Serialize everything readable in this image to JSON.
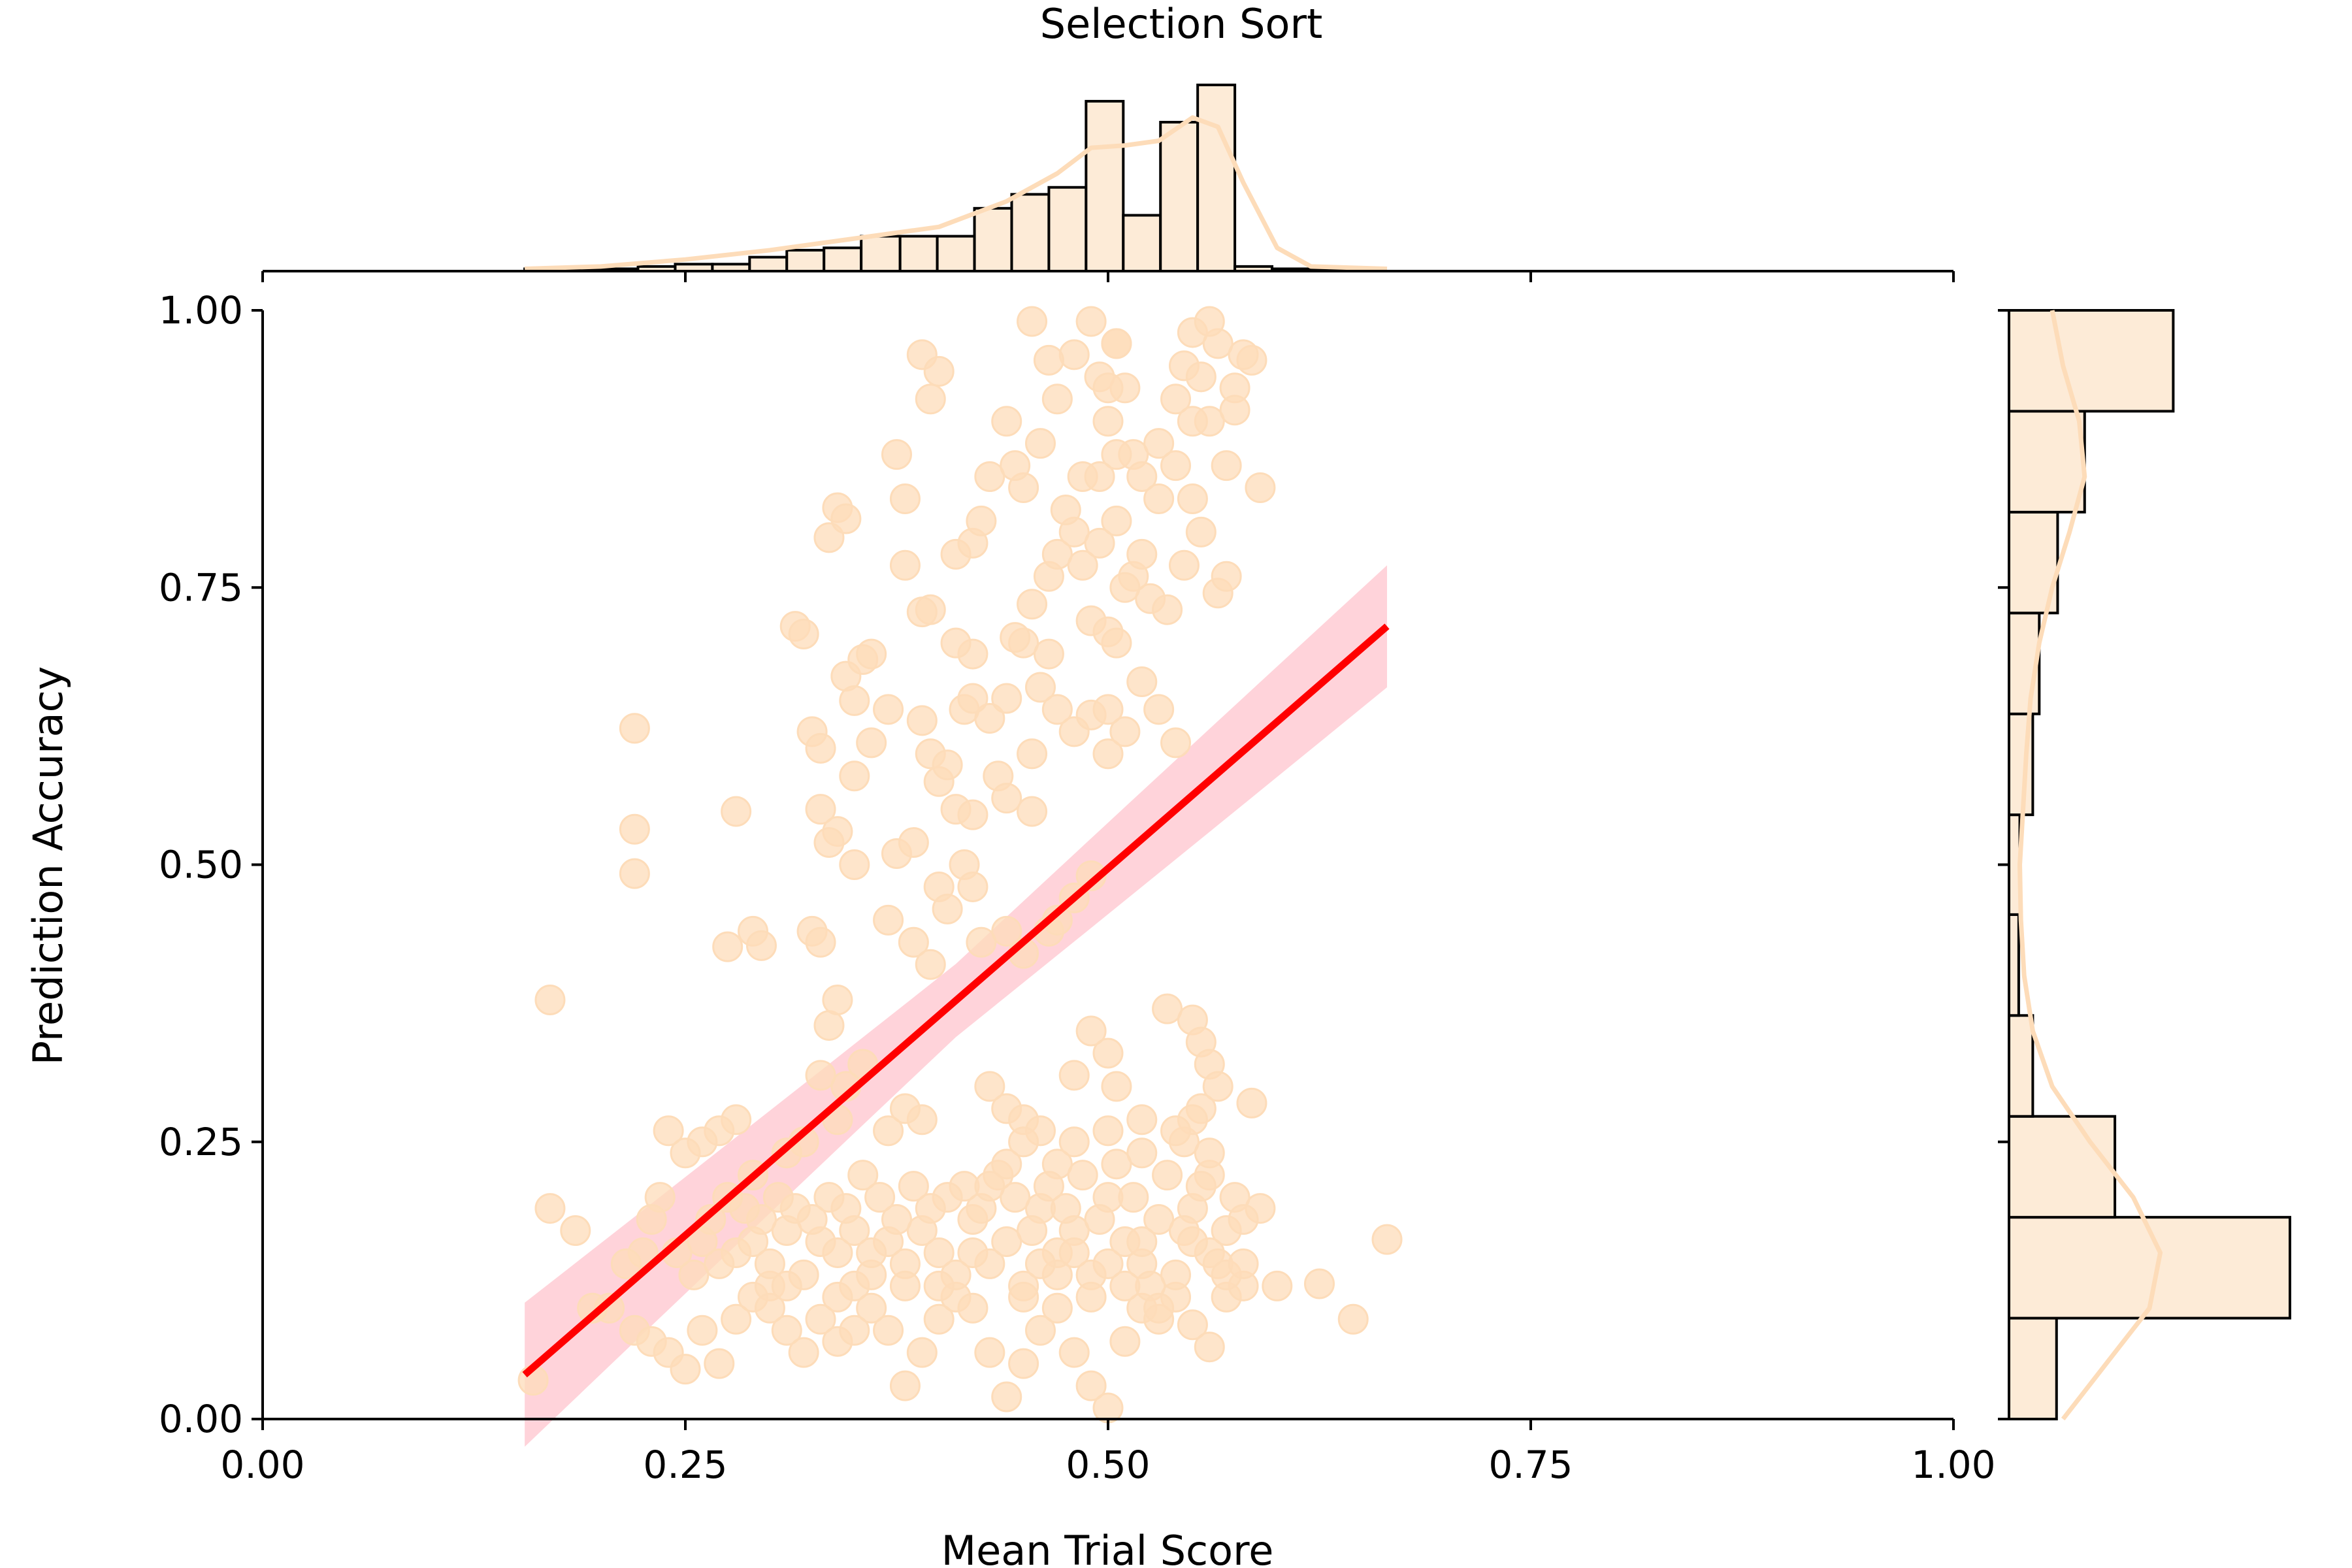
{
  "chart_data": {
    "type": "scatter",
    "title": "Selection Sort",
    "xlabel": "Mean Trial Score",
    "ylabel": "Prediction Accuracy",
    "xlim": [
      0,
      1
    ],
    "ylim": [
      0,
      1
    ],
    "xticks": [
      "0.00",
      "0.25",
      "0.50",
      "0.75",
      "1.00"
    ],
    "yticks": [
      "0.00",
      "0.25",
      "0.50",
      "0.75",
      "1.00"
    ],
    "colors": {
      "points": "#fddcb9",
      "regression_line": "#ff0000",
      "confidence_band": "#ffb6c1",
      "hist_fill": "#fdebd7",
      "kde": "#fddcb9"
    },
    "regression": {
      "x_range": [
        0.155,
        0.665
      ],
      "y_at_start": 0.04,
      "y_at_end": 0.715,
      "ci_half_width_start": 0.065,
      "ci_half_width_end": 0.055
    },
    "marginal_x": {
      "bin_edges": [
        0.155,
        0.177,
        0.199,
        0.222,
        0.244,
        0.266,
        0.288,
        0.31,
        0.332,
        0.354,
        0.377,
        0.399,
        0.421,
        0.443,
        0.465,
        0.487,
        0.509,
        0.531,
        0.553,
        0.575,
        0.597,
        0.62,
        0.642,
        0.664
      ],
      "counts": [
        1,
        1,
        1,
        2,
        3,
        3,
        6,
        9,
        10,
        15,
        15,
        15,
        27,
        33,
        36,
        73,
        24,
        64,
        80,
        2,
        1,
        0,
        0
      ],
      "kde_x": [
        0.155,
        0.2,
        0.25,
        0.3,
        0.35,
        0.4,
        0.44,
        0.47,
        0.49,
        0.51,
        0.53,
        0.55,
        0.565,
        0.58,
        0.6,
        0.62,
        0.665
      ],
      "kde_y": [
        1,
        2,
        5,
        9,
        14,
        19,
        30,
        42,
        53,
        54,
        56,
        66,
        62,
        38,
        10,
        2,
        1
      ]
    },
    "marginal_y": {
      "bin_edges": [
        0.0,
        0.091,
        0.182,
        0.273,
        0.364,
        0.455,
        0.545,
        0.636,
        0.727,
        0.818,
        0.909,
        1.0
      ],
      "counts": [
        44,
        260,
        98,
        22,
        9,
        10,
        22,
        28,
        45,
        70,
        152
      ],
      "kde_y": [
        0.0,
        0.05,
        0.1,
        0.15,
        0.2,
        0.25,
        0.3,
        0.35,
        0.4,
        0.45,
        0.5,
        0.6,
        0.65,
        0.7,
        0.75,
        0.8,
        0.85,
        0.9,
        0.95,
        1.0
      ],
      "kde_x": [
        50,
        90,
        130,
        140,
        115,
        75,
        40,
        22,
        14,
        11,
        10,
        16,
        20,
        28,
        40,
        56,
        70,
        65,
        50,
        40
      ]
    },
    "points": [
      [
        0.17,
        0.378
      ],
      [
        0.22,
        0.623
      ],
      [
        0.22,
        0.532
      ],
      [
        0.22,
        0.492
      ],
      [
        0.275,
        0.426
      ],
      [
        0.28,
        0.548
      ],
      [
        0.29,
        0.44
      ],
      [
        0.295,
        0.427
      ],
      [
        0.315,
        0.715
      ],
      [
        0.32,
        0.708
      ],
      [
        0.325,
        0.62
      ],
      [
        0.33,
        0.605
      ],
      [
        0.325,
        0.44
      ],
      [
        0.33,
        0.43
      ],
      [
        0.33,
        0.55
      ],
      [
        0.335,
        0.355
      ],
      [
        0.34,
        0.378
      ],
      [
        0.345,
        0.67
      ],
      [
        0.35,
        0.648
      ],
      [
        0.355,
        0.685
      ],
      [
        0.36,
        0.69
      ],
      [
        0.335,
        0.795
      ],
      [
        0.34,
        0.822
      ],
      [
        0.345,
        0.812
      ],
      [
        0.375,
        0.87
      ],
      [
        0.38,
        0.83
      ],
      [
        0.39,
        0.96
      ],
      [
        0.395,
        0.92
      ],
      [
        0.4,
        0.945
      ],
      [
        0.38,
        0.77
      ],
      [
        0.395,
        0.73
      ],
      [
        0.39,
        0.728
      ],
      [
        0.41,
        0.78
      ],
      [
        0.42,
        0.79
      ],
      [
        0.43,
        0.85
      ],
      [
        0.425,
        0.81
      ],
      [
        0.415,
        0.64
      ],
      [
        0.43,
        0.632
      ],
      [
        0.44,
        0.65
      ],
      [
        0.45,
        0.7
      ],
      [
        0.395,
        0.6
      ],
      [
        0.4,
        0.575
      ],
      [
        0.405,
        0.59
      ],
      [
        0.41,
        0.55
      ],
      [
        0.42,
        0.545
      ],
      [
        0.435,
        0.58
      ],
      [
        0.44,
        0.56
      ],
      [
        0.455,
        0.548
      ],
      [
        0.375,
        0.51
      ],
      [
        0.385,
        0.52
      ],
      [
        0.4,
        0.48
      ],
      [
        0.415,
        0.5
      ],
      [
        0.425,
        0.43
      ],
      [
        0.455,
        0.6
      ],
      [
        0.46,
        0.66
      ],
      [
        0.47,
        0.64
      ],
      [
        0.48,
        0.62
      ],
      [
        0.49,
        0.635
      ],
      [
        0.5,
        0.6
      ],
      [
        0.51,
        0.62
      ],
      [
        0.52,
        0.665
      ],
      [
        0.53,
        0.64
      ],
      [
        0.54,
        0.61
      ],
      [
        0.445,
        0.705
      ],
      [
        0.455,
        0.735
      ],
      [
        0.465,
        0.76
      ],
      [
        0.47,
        0.78
      ],
      [
        0.48,
        0.8
      ],
      [
        0.485,
        0.77
      ],
      [
        0.495,
        0.79
      ],
      [
        0.505,
        0.81
      ],
      [
        0.515,
        0.76
      ],
      [
        0.525,
        0.74
      ],
      [
        0.535,
        0.73
      ],
      [
        0.545,
        0.77
      ],
      [
        0.555,
        0.8
      ],
      [
        0.565,
        0.745
      ],
      [
        0.57,
        0.76
      ],
      [
        0.45,
        0.84
      ],
      [
        0.46,
        0.88
      ],
      [
        0.47,
        0.92
      ],
      [
        0.48,
        0.96
      ],
      [
        0.49,
        0.99
      ],
      [
        0.495,
        0.94
      ],
      [
        0.5,
        0.9
      ],
      [
        0.505,
        0.97
      ],
      [
        0.51,
        0.93
      ],
      [
        0.515,
        0.87
      ],
      [
        0.52,
        0.85
      ],
      [
        0.53,
        0.88
      ],
      [
        0.54,
        0.92
      ],
      [
        0.545,
        0.95
      ],
      [
        0.55,
        0.98
      ],
      [
        0.555,
        0.94
      ],
      [
        0.56,
        0.9
      ],
      [
        0.565,
        0.97
      ],
      [
        0.57,
        0.86
      ],
      [
        0.575,
        0.93
      ],
      [
        0.585,
        0.955
      ],
      [
        0.59,
        0.84
      ],
      [
        0.455,
        0.99
      ],
      [
        0.465,
        0.955
      ],
      [
        0.44,
        0.9
      ],
      [
        0.445,
        0.86
      ],
      [
        0.475,
        0.82
      ],
      [
        0.485,
        0.85
      ],
      [
        0.49,
        0.72
      ],
      [
        0.5,
        0.71
      ],
      [
        0.505,
        0.7
      ],
      [
        0.465,
        0.69
      ],
      [
        0.48,
        0.47
      ],
      [
        0.49,
        0.49
      ],
      [
        0.465,
        0.44
      ],
      [
        0.47,
        0.45
      ],
      [
        0.535,
        0.37
      ],
      [
        0.55,
        0.36
      ],
      [
        0.555,
        0.34
      ],
      [
        0.56,
        0.32
      ],
      [
        0.565,
        0.3
      ],
      [
        0.555,
        0.28
      ],
      [
        0.545,
        0.25
      ],
      [
        0.55,
        0.27
      ],
      [
        0.56,
        0.22
      ],
      [
        0.52,
        0.24
      ],
      [
        0.52,
        0.27
      ],
      [
        0.5,
        0.33
      ],
      [
        0.49,
        0.35
      ],
      [
        0.48,
        0.31
      ],
      [
        0.505,
        0.3
      ],
      [
        0.43,
        0.3
      ],
      [
        0.44,
        0.28
      ],
      [
        0.45,
        0.27
      ],
      [
        0.46,
        0.26
      ],
      [
        0.47,
        0.23
      ],
      [
        0.48,
        0.25
      ],
      [
        0.39,
        0.27
      ],
      [
        0.38,
        0.28
      ],
      [
        0.37,
        0.26
      ],
      [
        0.355,
        0.32
      ],
      [
        0.345,
        0.3
      ],
      [
        0.33,
        0.31
      ],
      [
        0.34,
        0.27
      ],
      [
        0.32,
        0.25
      ],
      [
        0.31,
        0.24
      ],
      [
        0.29,
        0.22
      ],
      [
        0.28,
        0.27
      ],
      [
        0.27,
        0.26
      ],
      [
        0.26,
        0.25
      ],
      [
        0.25,
        0.24
      ],
      [
        0.24,
        0.26
      ],
      [
        0.235,
        0.2
      ],
      [
        0.23,
        0.18
      ],
      [
        0.225,
        0.15
      ],
      [
        0.215,
        0.14
      ],
      [
        0.205,
        0.1
      ],
      [
        0.195,
        0.1
      ],
      [
        0.185,
        0.17
      ],
      [
        0.17,
        0.19
      ],
      [
        0.16,
        0.035
      ],
      [
        0.22,
        0.08
      ],
      [
        0.23,
        0.07
      ],
      [
        0.24,
        0.06
      ],
      [
        0.25,
        0.045
      ],
      [
        0.26,
        0.08
      ],
      [
        0.27,
        0.05
      ],
      [
        0.28,
        0.09
      ],
      [
        0.29,
        0.11
      ],
      [
        0.3,
        0.12
      ],
      [
        0.31,
        0.08
      ],
      [
        0.32,
        0.06
      ],
      [
        0.33,
        0.09
      ],
      [
        0.34,
        0.07
      ],
      [
        0.35,
        0.12
      ],
      [
        0.36,
        0.1
      ],
      [
        0.37,
        0.08
      ],
      [
        0.38,
        0.03
      ],
      [
        0.39,
        0.06
      ],
      [
        0.4,
        0.09
      ],
      [
        0.41,
        0.11
      ],
      [
        0.42,
        0.1
      ],
      [
        0.43,
        0.06
      ],
      [
        0.44,
        0.02
      ],
      [
        0.45,
        0.05
      ],
      [
        0.46,
        0.08
      ],
      [
        0.47,
        0.1
      ],
      [
        0.48,
        0.06
      ],
      [
        0.49,
        0.03
      ],
      [
        0.5,
        0.01
      ],
      [
        0.51,
        0.07
      ],
      [
        0.52,
        0.1
      ],
      [
        0.53,
        0.09
      ],
      [
        0.54,
        0.11
      ],
      [
        0.55,
        0.085
      ],
      [
        0.56,
        0.065
      ],
      [
        0.57,
        0.11
      ],
      [
        0.58,
        0.12
      ],
      [
        0.6,
        0.12
      ],
      [
        0.625,
        0.122
      ],
      [
        0.645,
        0.09
      ],
      [
        0.665,
        0.162
      ],
      [
        0.585,
        0.285
      ],
      [
        0.59,
        0.19
      ],
      [
        0.28,
        0.15
      ],
      [
        0.29,
        0.16
      ],
      [
        0.3,
        0.14
      ],
      [
        0.31,
        0.17
      ],
      [
        0.32,
        0.13
      ],
      [
        0.33,
        0.16
      ],
      [
        0.34,
        0.15
      ],
      [
        0.35,
        0.17
      ],
      [
        0.36,
        0.13
      ],
      [
        0.37,
        0.16
      ],
      [
        0.38,
        0.14
      ],
      [
        0.39,
        0.17
      ],
      [
        0.4,
        0.15
      ],
      [
        0.41,
        0.13
      ],
      [
        0.42,
        0.18
      ],
      [
        0.43,
        0.14
      ],
      [
        0.44,
        0.16
      ],
      [
        0.45,
        0.12
      ],
      [
        0.46,
        0.19
      ],
      [
        0.47,
        0.15
      ],
      [
        0.48,
        0.17
      ],
      [
        0.49,
        0.13
      ],
      [
        0.5,
        0.2
      ],
      [
        0.51,
        0.16
      ],
      [
        0.52,
        0.14
      ],
      [
        0.53,
        0.18
      ],
      [
        0.54,
        0.13
      ],
      [
        0.55,
        0.19
      ],
      [
        0.56,
        0.15
      ],
      [
        0.57,
        0.17
      ],
      [
        0.575,
        0.2
      ],
      [
        0.565,
        0.14
      ],
      [
        0.555,
        0.21
      ],
      [
        0.545,
        0.17
      ],
      [
        0.535,
        0.22
      ],
      [
        0.525,
        0.12
      ],
      [
        0.515,
        0.2
      ],
      [
        0.505,
        0.23
      ],
      [
        0.495,
        0.18
      ],
      [
        0.485,
        0.22
      ],
      [
        0.475,
        0.19
      ],
      [
        0.465,
        0.21
      ],
      [
        0.455,
        0.17
      ],
      [
        0.445,
        0.2
      ],
      [
        0.435,
        0.22
      ],
      [
        0.425,
        0.19
      ],
      [
        0.415,
        0.21
      ],
      [
        0.405,
        0.2
      ],
      [
        0.395,
        0.19
      ],
      [
        0.385,
        0.21
      ],
      [
        0.375,
        0.18
      ],
      [
        0.365,
        0.2
      ],
      [
        0.355,
        0.22
      ],
      [
        0.345,
        0.19
      ],
      [
        0.335,
        0.2
      ],
      [
        0.325,
        0.18
      ],
      [
        0.315,
        0.19
      ],
      [
        0.305,
        0.2
      ],
      [
        0.295,
        0.18
      ],
      [
        0.285,
        0.19
      ],
      [
        0.275,
        0.2
      ],
      [
        0.265,
        0.18
      ],
      [
        0.255,
        0.13
      ],
      [
        0.245,
        0.15
      ],
      [
        0.3,
        0.1
      ],
      [
        0.35,
        0.08
      ],
      [
        0.4,
        0.12
      ],
      [
        0.45,
        0.11
      ],
      [
        0.5,
        0.14
      ],
      [
        0.55,
        0.16
      ],
      [
        0.47,
        0.13
      ],
      [
        0.49,
        0.11
      ],
      [
        0.51,
        0.12
      ],
      [
        0.53,
        0.1
      ],
      [
        0.57,
        0.13
      ],
      [
        0.58,
        0.18
      ],
      [
        0.56,
        0.24
      ],
      [
        0.54,
        0.26
      ],
      [
        0.45,
        0.25
      ],
      [
        0.44,
        0.23
      ],
      [
        0.43,
        0.21
      ],
      [
        0.5,
        0.26
      ],
      [
        0.52,
        0.16
      ],
      [
        0.58,
        0.14
      ],
      [
        0.48,
        0.15
      ],
      [
        0.46,
        0.14
      ],
      [
        0.42,
        0.15
      ],
      [
        0.38,
        0.12
      ],
      [
        0.36,
        0.15
      ],
      [
        0.34,
        0.11
      ],
      [
        0.31,
        0.12
      ],
      [
        0.27,
        0.14
      ],
      [
        0.26,
        0.16
      ],
      [
        0.505,
        0.97
      ],
      [
        0.5,
        0.93
      ],
      [
        0.505,
        0.87
      ],
      [
        0.495,
        0.85
      ],
      [
        0.56,
        0.99
      ],
      [
        0.55,
        0.9
      ],
      [
        0.54,
        0.86
      ],
      [
        0.53,
        0.83
      ],
      [
        0.52,
        0.78
      ],
      [
        0.51,
        0.75
      ],
      [
        0.58,
        0.96
      ],
      [
        0.575,
        0.91
      ],
      [
        0.55,
        0.83
      ],
      [
        0.5,
        0.64
      ],
      [
        0.42,
        0.69
      ],
      [
        0.41,
        0.7
      ],
      [
        0.42,
        0.65
      ],
      [
        0.39,
        0.63
      ],
      [
        0.37,
        0.64
      ],
      [
        0.36,
        0.61
      ],
      [
        0.35,
        0.58
      ],
      [
        0.34,
        0.53
      ],
      [
        0.335,
        0.52
      ],
      [
        0.35,
        0.5
      ],
      [
        0.37,
        0.45
      ],
      [
        0.385,
        0.43
      ],
      [
        0.395,
        0.41
      ],
      [
        0.405,
        0.46
      ],
      [
        0.42,
        0.48
      ],
      [
        0.44,
        0.44
      ],
      [
        0.45,
        0.42
      ]
    ]
  }
}
